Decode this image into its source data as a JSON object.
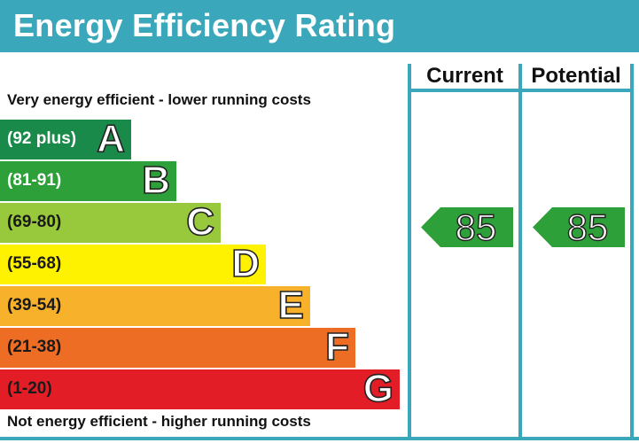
{
  "title": "Energy Efficiency Rating",
  "top_caption": "Very energy efficient - lower running costs",
  "bottom_caption": "Not energy efficient - higher running costs",
  "columns": {
    "current": "Current",
    "potential": "Potential"
  },
  "chart_data": {
    "type": "bar",
    "bands": [
      {
        "letter": "A",
        "range": "(92 plus)",
        "color": "#1a8a4a",
        "text_color": "#ffffff"
      },
      {
        "letter": "B",
        "range": "(81-91)",
        "color": "#2ea03a",
        "text_color": "#ffffff"
      },
      {
        "letter": "C",
        "range": "(69-80)",
        "color": "#98c93c",
        "text_color": "#1a1a1a"
      },
      {
        "letter": "D",
        "range": "(55-68)",
        "color": "#fff200",
        "text_color": "#1a1a1a"
      },
      {
        "letter": "E",
        "range": "(39-54)",
        "color": "#f7b12a",
        "text_color": "#1a1a1a"
      },
      {
        "letter": "F",
        "range": "(21-38)",
        "color": "#ee6d24",
        "text_color": "#1a1a1a"
      },
      {
        "letter": "G",
        "range": "(1-20)",
        "color": "#e31d25",
        "text_color": "#1a1a1a"
      }
    ],
    "current": {
      "value": "85",
      "band": "B",
      "color": "#2ea03a"
    },
    "potential": {
      "value": "85",
      "band": "B",
      "color": "#2ea03a"
    }
  }
}
